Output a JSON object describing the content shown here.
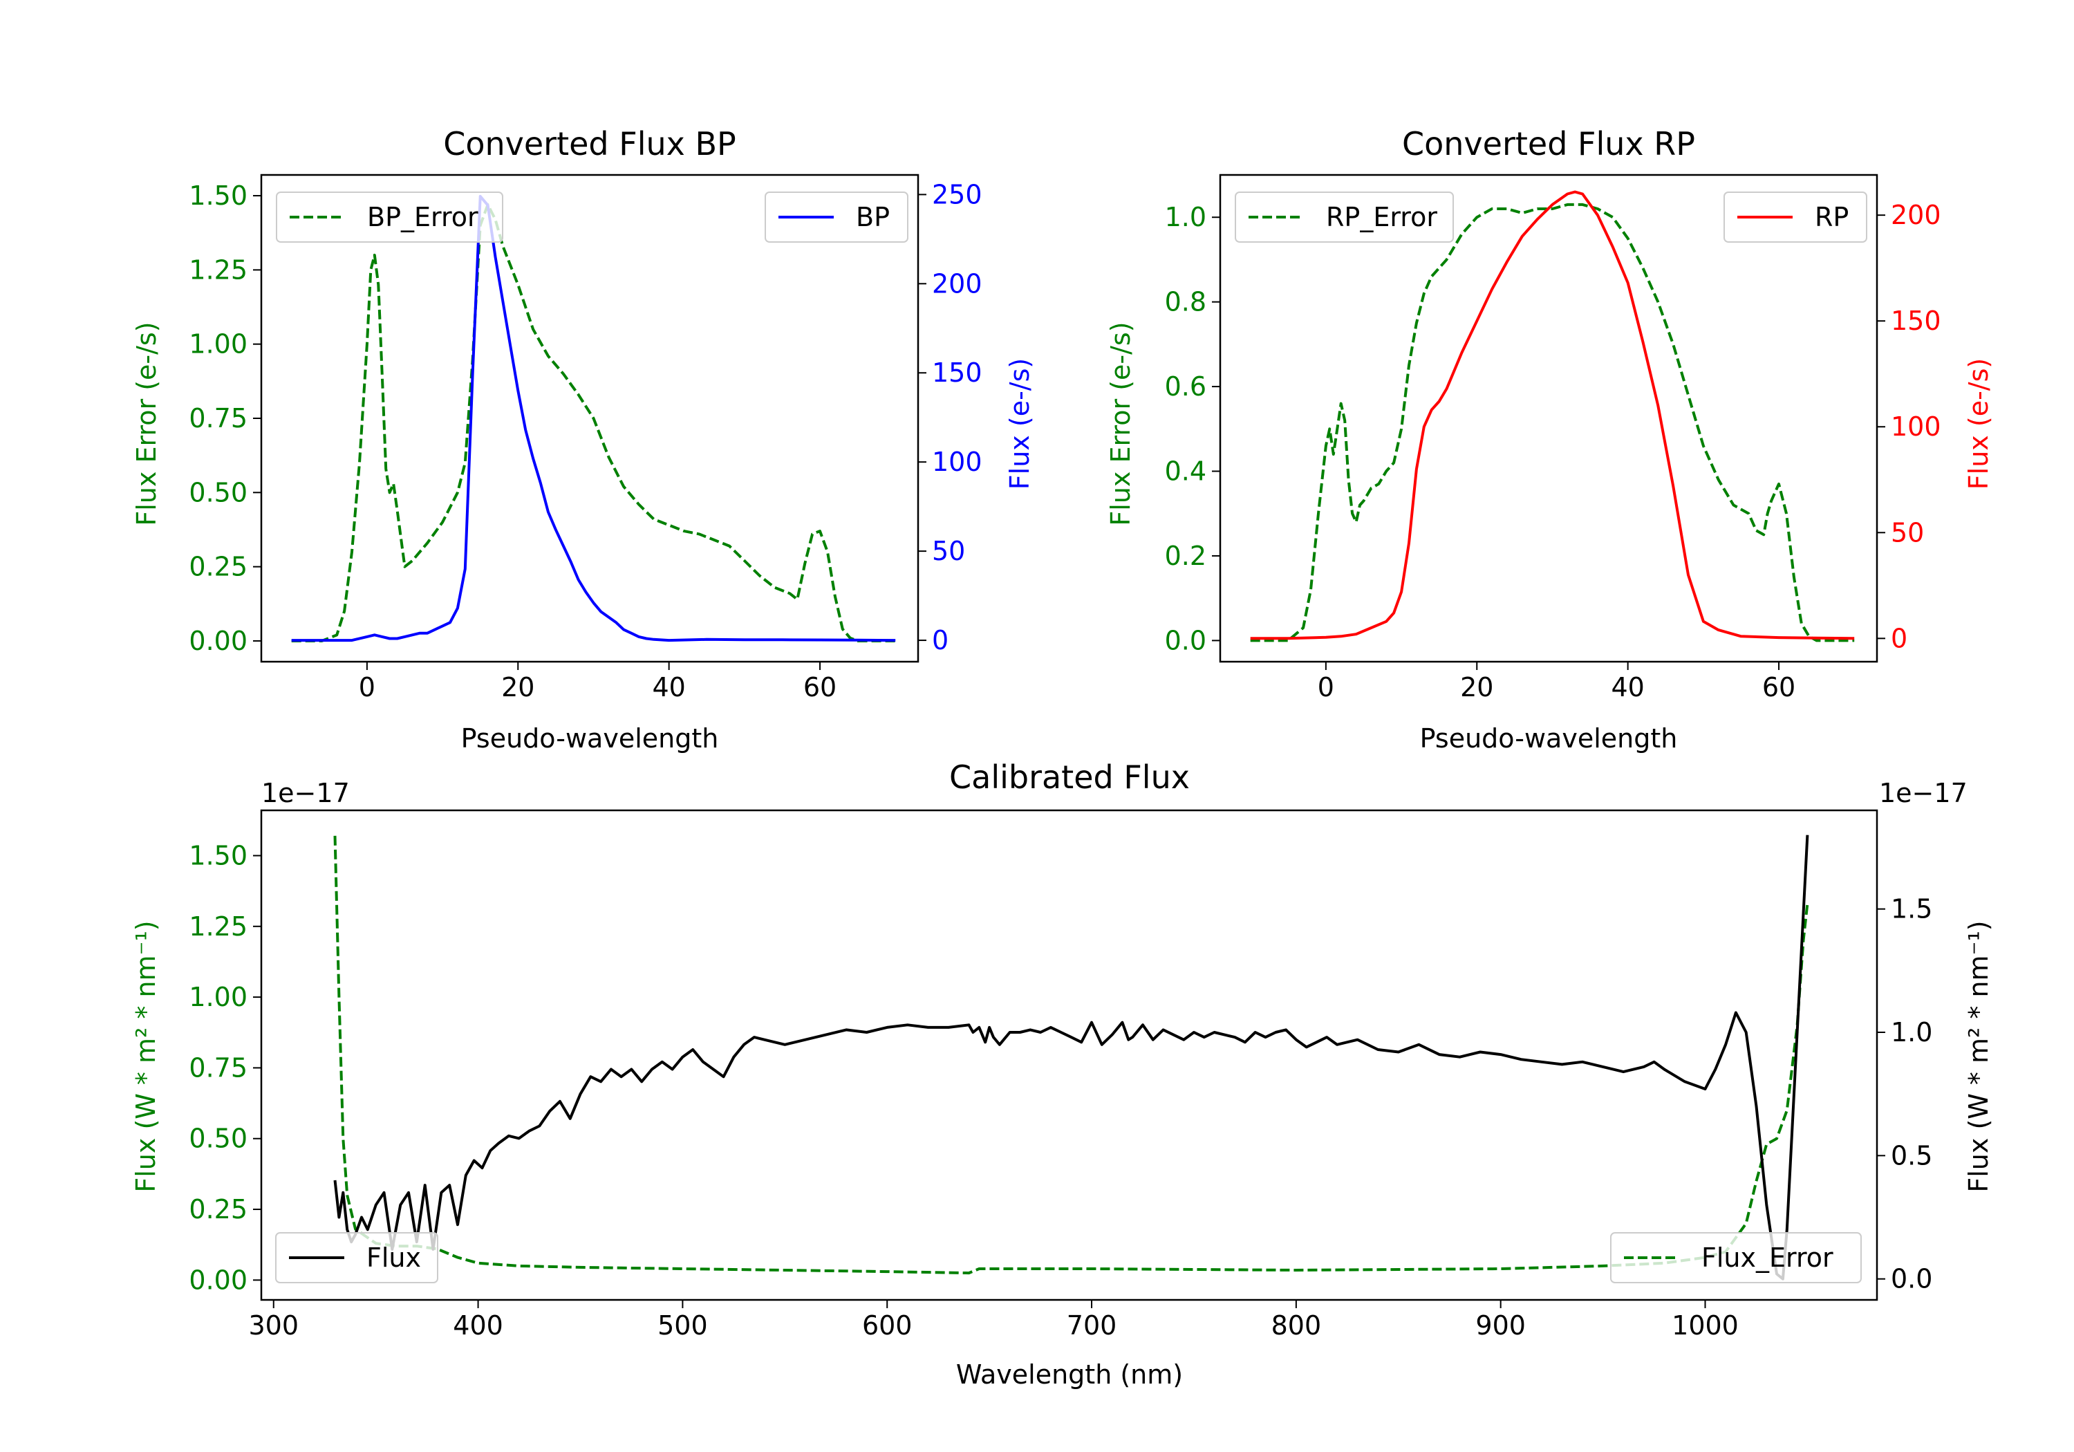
{
  "chart_data": [
    {
      "id": "bp",
      "type": "line",
      "title": "Converted Flux BP",
      "xlabel": "Pseudo-wavelength",
      "ylabel_left": "Flux Error (e-/s)",
      "ylabel_right": "Flux (e-/s)",
      "xlim": [
        -14,
        73
      ],
      "ylim_left": [
        -0.07,
        1.57
      ],
      "ylim_right": [
        -12,
        261
      ],
      "xticks": [
        0,
        20,
        40,
        60
      ],
      "yticks_left": [
        "0.00",
        "0.25",
        "0.50",
        "0.75",
        "1.00",
        "1.25",
        "1.50"
      ],
      "yticks_right": [
        "0",
        "50",
        "100",
        "150",
        "200",
        "250"
      ],
      "legend_left": {
        "label": "BP_Error",
        "position": "upper left"
      },
      "legend_right": {
        "label": "BP",
        "position": "upper right"
      },
      "colors": {
        "error": "#008000",
        "flux": "#0000ff"
      },
      "series_error": {
        "name": "BP_Error",
        "x": [
          -10,
          -6,
          -4,
          -3,
          -2,
          -1,
          0,
          0.5,
          1,
          1.5,
          2,
          2.5,
          3,
          3.5,
          4,
          5,
          6,
          8,
          10,
          12,
          13,
          14,
          15,
          16,
          17,
          18,
          20,
          22,
          24,
          26,
          28,
          30,
          32,
          34,
          36,
          38,
          40,
          42,
          44,
          46,
          48,
          50,
          52,
          54,
          56,
          57,
          58,
          59,
          60,
          61,
          62,
          63,
          64,
          65,
          70
        ],
        "y": [
          0,
          0,
          0.02,
          0.1,
          0.3,
          0.6,
          1.0,
          1.25,
          1.3,
          1.2,
          0.9,
          0.58,
          0.5,
          0.53,
          0.44,
          0.25,
          0.27,
          0.33,
          0.4,
          0.5,
          0.6,
          0.95,
          1.4,
          1.47,
          1.42,
          1.33,
          1.2,
          1.05,
          0.96,
          0.9,
          0.83,
          0.75,
          0.62,
          0.52,
          0.46,
          0.41,
          0.39,
          0.37,
          0.36,
          0.34,
          0.32,
          0.27,
          0.22,
          0.18,
          0.16,
          0.14,
          0.26,
          0.36,
          0.37,
          0.3,
          0.15,
          0.04,
          0.01,
          0,
          0
        ]
      },
      "series_flux": {
        "name": "BP",
        "x": [
          -10,
          -5,
          -2,
          0,
          1,
          2,
          3,
          4,
          5,
          6,
          7,
          8,
          9,
          10,
          11,
          12,
          13,
          14,
          15,
          16,
          17,
          18,
          19,
          20,
          21,
          22,
          23,
          24,
          25,
          26,
          27,
          28,
          29,
          30,
          31,
          32,
          33,
          34,
          35,
          36,
          37,
          38,
          40,
          45,
          50,
          55,
          60,
          65,
          70
        ],
        "y": [
          0,
          0,
          0,
          2,
          3,
          2,
          1,
          1,
          2,
          3,
          4,
          4,
          6,
          8,
          10,
          18,
          40,
          150,
          249,
          244,
          215,
          190,
          165,
          140,
          118,
          102,
          88,
          72,
          62,
          53,
          44,
          34,
          27,
          21,
          16,
          13,
          10,
          6,
          4,
          2,
          1,
          0.5,
          0,
          0.5,
          0.3,
          0.3,
          0.2,
          0.1,
          0
        ]
      }
    },
    {
      "id": "rp",
      "type": "line",
      "title": "Converted Flux RP",
      "xlabel": "Pseudo-wavelength",
      "ylabel_left": "Flux Error (e-/s)",
      "ylabel_right": "Flux (e-/s)",
      "xlim": [
        -14,
        73
      ],
      "ylim_left": [
        -0.05,
        1.1
      ],
      "ylim_right": [
        -11,
        219
      ],
      "xticks": [
        0,
        20,
        40,
        60
      ],
      "yticks_left": [
        "0.0",
        "0.2",
        "0.4",
        "0.6",
        "0.8",
        "1.0"
      ],
      "yticks_right": [
        "0",
        "50",
        "100",
        "150",
        "200"
      ],
      "legend_left": {
        "label": "RP_Error",
        "position": "upper left"
      },
      "legend_right": {
        "label": "RP",
        "position": "upper right"
      },
      "colors": {
        "error": "#008000",
        "flux": "#ff0000"
      },
      "series_error": {
        "name": "RP_Error",
        "x": [
          -10,
          -5,
          -3,
          -2,
          -1,
          0,
          0.5,
          1,
          1.5,
          2,
          2.5,
          3,
          3.5,
          4,
          4.5,
          5,
          6,
          7,
          8,
          9,
          10,
          11,
          12,
          13,
          14,
          16,
          18,
          20,
          22,
          24,
          26,
          28,
          30,
          32,
          34,
          36,
          38,
          40,
          42,
          44,
          46,
          48,
          50,
          52,
          54,
          56,
          57,
          58,
          58.5,
          59,
          60,
          61,
          62,
          63,
          64,
          65,
          70
        ],
        "y": [
          0,
          0,
          0.03,
          0.12,
          0.3,
          0.46,
          0.5,
          0.44,
          0.5,
          0.56,
          0.52,
          0.38,
          0.3,
          0.28,
          0.32,
          0.33,
          0.36,
          0.37,
          0.4,
          0.42,
          0.5,
          0.65,
          0.75,
          0.82,
          0.86,
          0.9,
          0.96,
          1.0,
          1.02,
          1.02,
          1.01,
          1.02,
          1.02,
          1.03,
          1.03,
          1.02,
          1.0,
          0.95,
          0.88,
          0.8,
          0.7,
          0.58,
          0.46,
          0.38,
          0.32,
          0.3,
          0.26,
          0.25,
          0.3,
          0.33,
          0.37,
          0.3,
          0.15,
          0.04,
          0.01,
          0,
          0
        ]
      },
      "series_flux": {
        "name": "RP",
        "x": [
          -10,
          -5,
          0,
          2,
          4,
          6,
          8,
          9,
          10,
          11,
          12,
          13,
          14,
          15,
          16,
          18,
          20,
          22,
          24,
          26,
          28,
          30,
          32,
          33,
          34,
          36,
          38,
          40,
          42,
          44,
          46,
          48,
          50,
          52,
          55,
          60,
          65,
          70
        ],
        "y": [
          0,
          0,
          0.5,
          1,
          2,
          5,
          8,
          12,
          22,
          45,
          80,
          100,
          108,
          112,
          118,
          135,
          150,
          165,
          178,
          190,
          198,
          205,
          210,
          211,
          210,
          200,
          185,
          168,
          140,
          110,
          72,
          30,
          8,
          4,
          1,
          0.4,
          0.2,
          0
        ]
      }
    },
    {
      "id": "calibrated",
      "type": "line",
      "title": "Calibrated Flux",
      "xlabel": "Wavelength (nm)",
      "ylabel_left": "Flux (W * m² * nm⁻¹)",
      "ylabel_right": "Flux (W * m² * nm⁻¹)",
      "offset_left": "1e−17",
      "offset_right": "1e−17",
      "xlim": [
        294,
        1084
      ],
      "ylim_left": [
        -0.07,
        1.66
      ],
      "ylim_right": [
        -0.085,
        1.9
      ],
      "xticks": [
        300,
        400,
        500,
        600,
        700,
        800,
        900,
        1000
      ],
      "yticks_left": [
        "0.00",
        "0.25",
        "0.50",
        "0.75",
        "1.00",
        "1.25",
        "1.50"
      ],
      "yticks_right": [
        "0.0",
        "0.5",
        "1.0",
        "1.5"
      ],
      "legend_left": {
        "label": "Flux",
        "position": "lower left"
      },
      "legend_right": {
        "label": "Flux_Error",
        "position": "lower right"
      },
      "colors": {
        "error": "#008000",
        "flux": "#000000"
      },
      "series_error": {
        "name": "Flux_Error",
        "x": [
          330,
          332,
          334,
          336,
          340,
          350,
          360,
          370,
          380,
          390,
          400,
          420,
          450,
          500,
          550,
          600,
          640,
          645,
          700,
          800,
          900,
          950,
          980,
          1000,
          1010,
          1020,
          1025,
          1030,
          1035,
          1040,
          1045,
          1048,
          1050
        ],
        "y": [
          1.57,
          1.0,
          0.5,
          0.3,
          0.18,
          0.13,
          0.12,
          0.12,
          0.11,
          0.08,
          0.06,
          0.05,
          0.045,
          0.04,
          0.035,
          0.03,
          0.025,
          0.04,
          0.04,
          0.035,
          0.04,
          0.05,
          0.06,
          0.08,
          0.1,
          0.2,
          0.35,
          0.48,
          0.5,
          0.6,
          0.9,
          1.2,
          1.33
        ]
      },
      "series_flux": {
        "name": "Flux",
        "x": [
          330,
          332,
          334,
          336,
          338,
          340,
          343,
          346,
          350,
          354,
          358,
          362,
          366,
          370,
          374,
          378,
          382,
          386,
          390,
          394,
          398,
          402,
          406,
          410,
          415,
          420,
          425,
          430,
          435,
          440,
          445,
          450,
          455,
          460,
          465,
          470,
          475,
          480,
          485,
          490,
          495,
          500,
          505,
          510,
          515,
          520,
          525,
          530,
          535,
          540,
          550,
          560,
          570,
          580,
          590,
          600,
          610,
          620,
          630,
          640,
          642,
          645,
          648,
          650,
          652,
          655,
          660,
          665,
          670,
          675,
          680,
          685,
          690,
          695,
          700,
          705,
          710,
          715,
          718,
          720,
          725,
          730,
          735,
          740,
          745,
          750,
          755,
          760,
          765,
          770,
          775,
          780,
          785,
          790,
          795,
          800,
          805,
          810,
          815,
          820,
          830,
          840,
          850,
          860,
          870,
          880,
          890,
          900,
          910,
          920,
          930,
          940,
          950,
          960,
          970,
          975,
          980,
          990,
          1000,
          1005,
          1010,
          1015,
          1020,
          1025,
          1030,
          1035,
          1038,
          1040,
          1045,
          1050
        ],
        "y": [
          0.4,
          0.25,
          0.35,
          0.2,
          0.15,
          0.18,
          0.25,
          0.2,
          0.3,
          0.35,
          0.12,
          0.3,
          0.35,
          0.15,
          0.38,
          0.12,
          0.35,
          0.38,
          0.22,
          0.42,
          0.48,
          0.45,
          0.52,
          0.55,
          0.58,
          0.57,
          0.6,
          0.62,
          0.68,
          0.72,
          0.65,
          0.75,
          0.82,
          0.8,
          0.85,
          0.82,
          0.85,
          0.8,
          0.85,
          0.88,
          0.85,
          0.9,
          0.93,
          0.88,
          0.85,
          0.82,
          0.9,
          0.95,
          0.98,
          0.97,
          0.95,
          0.97,
          0.99,
          1.01,
          1.0,
          1.02,
          1.03,
          1.02,
          1.02,
          1.03,
          1.0,
          1.02,
          0.96,
          1.02,
          0.98,
          0.95,
          1.0,
          1.0,
          1.01,
          1.0,
          1.02,
          1.0,
          0.98,
          0.96,
          1.04,
          0.95,
          0.99,
          1.04,
          0.97,
          0.98,
          1.03,
          0.97,
          1.01,
          0.99,
          0.97,
          1.0,
          0.98,
          1.0,
          0.99,
          0.98,
          0.96,
          1.0,
          0.98,
          1.0,
          1.01,
          0.97,
          0.94,
          0.96,
          0.98,
          0.95,
          0.97,
          0.93,
          0.92,
          0.95,
          0.91,
          0.9,
          0.92,
          0.91,
          0.89,
          0.88,
          0.87,
          0.88,
          0.86,
          0.84,
          0.86,
          0.88,
          0.85,
          0.8,
          0.77,
          0.85,
          0.95,
          1.08,
          1.0,
          0.7,
          0.3,
          0.02,
          0.0,
          0.2,
          1.0,
          1.8
        ]
      }
    }
  ]
}
